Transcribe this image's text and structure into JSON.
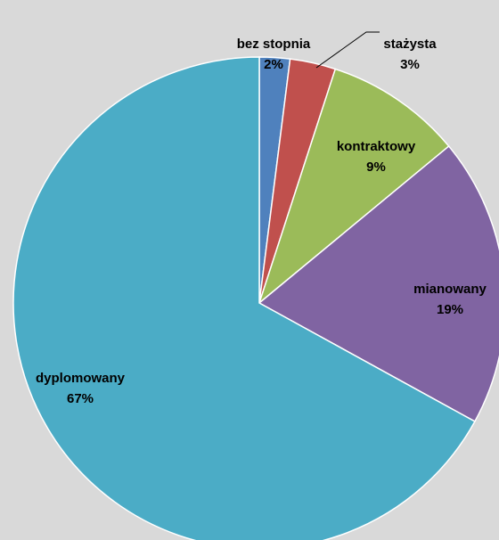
{
  "chart_data": {
    "type": "pie",
    "categories": [
      "bez stopnia",
      "stażysta",
      "kontraktowy",
      "mianowany",
      "dyplomowany"
    ],
    "values": [
      2,
      3,
      9,
      19,
      67
    ],
    "value_labels": [
      "2%",
      "3%",
      "9%",
      "19%",
      "67%"
    ],
    "colors": [
      "#4f81bd",
      "#c0504d",
      "#9bbb59",
      "#8064a2",
      "#4bacc6"
    ]
  }
}
